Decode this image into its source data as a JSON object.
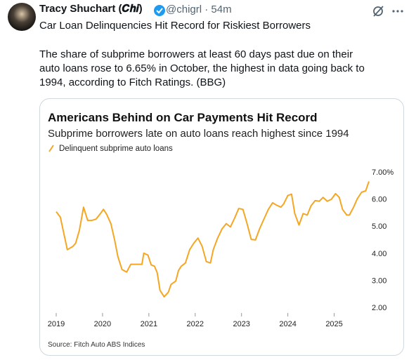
{
  "tweet": {
    "author": "Tracy Shuchart (𝑪𝒉𝒊)",
    "meta": "@chigrl · 54m",
    "headline": "Car Loan Delinquencies Hit Record for Riskiest Borrowers",
    "body": "The share of subprime borrowers at least 60 days past due on their auto loans rose to 6.65% in October, the highest in data going back to 1994, according to Fitch Ratings. (BBG)"
  },
  "chart_data": {
    "type": "line",
    "title": "Americans Behind on Car Payments Hit Record",
    "subtitle": "Subprime borrowers late on auto loans reach highest since 1994",
    "source": "Source: Fitch Auto ABS Indices",
    "x": [
      2019.0,
      2019.09,
      2019.24,
      2019.36,
      2019.42,
      2019.5,
      2019.59,
      2019.68,
      2019.77,
      2019.86,
      2019.95,
      2020.02,
      2020.09,
      2020.18,
      2020.26,
      2020.33,
      2020.42,
      2020.52,
      2020.61,
      2020.67,
      2020.76,
      2020.85,
      2020.89,
      2020.98,
      2021.05,
      2021.12,
      2021.18,
      2021.24,
      2021.33,
      2021.42,
      2021.48,
      2021.58,
      2021.64,
      2021.7,
      2021.79,
      2021.88,
      2021.97,
      2022.06,
      2022.15,
      2022.24,
      2022.33,
      2022.39,
      2022.48,
      2022.58,
      2022.67,
      2022.76,
      2022.85,
      2022.94,
      2023.03,
      2023.12,
      2023.21,
      2023.3,
      2023.39,
      2023.48,
      2023.58,
      2023.67,
      2023.76,
      2023.85,
      2023.91,
      2024.0,
      2024.08,
      2024.15,
      2024.24,
      2024.33,
      2024.42,
      2024.5,
      2024.59,
      2024.68,
      2024.76,
      2024.85,
      2024.94,
      2025.03,
      2025.11,
      2025.18,
      2025.27,
      2025.33,
      2025.42,
      2025.5,
      2025.59,
      2025.68,
      2025.75
    ],
    "series": [
      {
        "name": "Delinquent subprime auto loans",
        "color": "#f5a623",
        "values": [
          5.53,
          5.33,
          4.13,
          4.25,
          4.37,
          4.85,
          5.7,
          5.21,
          5.21,
          5.26,
          5.45,
          5.62,
          5.43,
          5.09,
          4.49,
          3.88,
          3.4,
          3.3,
          3.59,
          3.59,
          3.59,
          3.59,
          4.0,
          3.93,
          3.57,
          3.52,
          3.28,
          2.63,
          2.39,
          2.56,
          2.85,
          2.97,
          3.36,
          3.52,
          3.64,
          4.13,
          4.37,
          4.56,
          4.25,
          3.69,
          3.64,
          4.13,
          4.54,
          4.9,
          5.09,
          4.97,
          5.29,
          5.65,
          5.62,
          5.09,
          4.51,
          4.49,
          4.9,
          5.24,
          5.62,
          5.86,
          5.77,
          5.7,
          5.82,
          6.13,
          6.18,
          5.46,
          5.04,
          5.46,
          5.41,
          5.75,
          5.94,
          5.92,
          6.06,
          5.92,
          5.99,
          6.2,
          6.06,
          5.62,
          5.41,
          5.41,
          5.7,
          6.01,
          6.25,
          6.3,
          6.65
        ]
      }
    ],
    "xlim": [
      2019,
      2025.75
    ],
    "xticks": [
      2019,
      2020,
      2021,
      2022,
      2023,
      2024,
      2025
    ],
    "ylim": [
      2,
      7
    ],
    "yticks": [
      {
        "value": 2,
        "label": "2.00"
      },
      {
        "value": 3,
        "label": "3.00"
      },
      {
        "value": 4,
        "label": "4.00"
      },
      {
        "value": 5,
        "label": "5.00"
      },
      {
        "value": 6,
        "label": "6.00"
      },
      {
        "value": 7,
        "label": "7.00%"
      }
    ]
  }
}
